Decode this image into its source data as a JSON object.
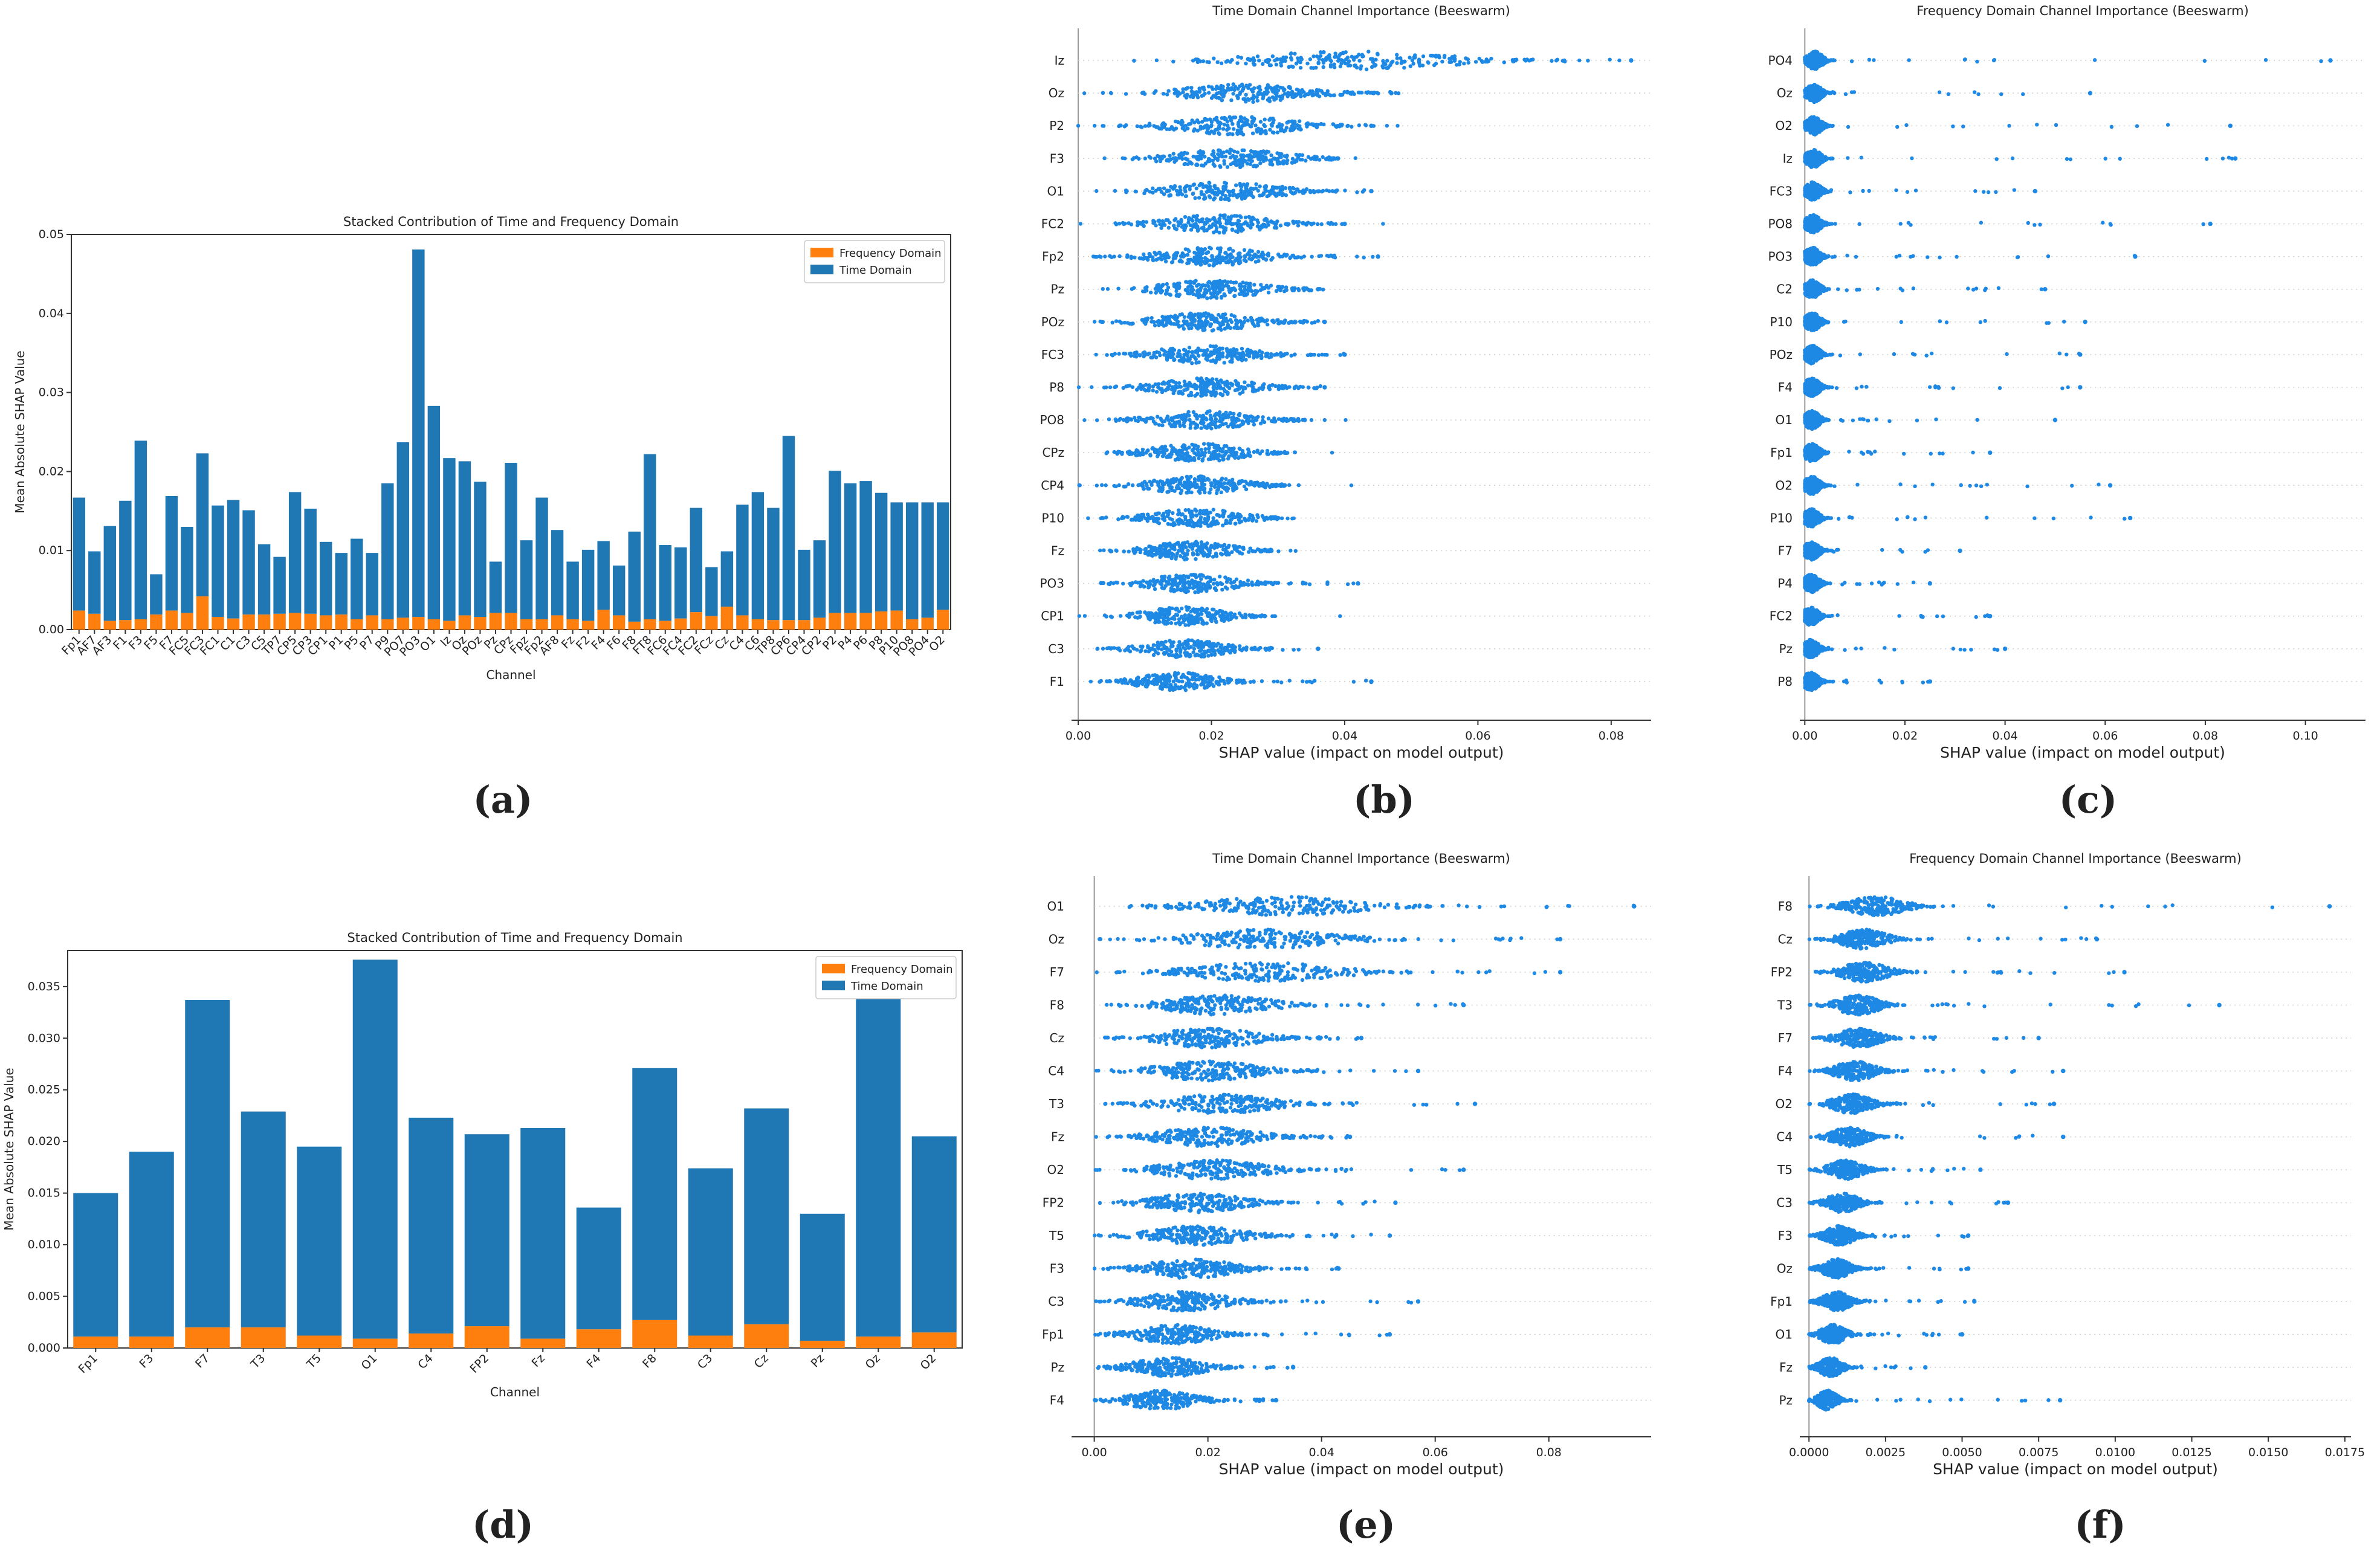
{
  "colors": {
    "time": "#1f77b4",
    "freq": "#ff7f0e",
    "dot": "#1e88e5",
    "axis": "#333333"
  },
  "panel_labels": [
    "(a)",
    "(b)",
    "(c)",
    "(d)",
    "(e)",
    "(f)"
  ],
  "chart_data": [
    {
      "id": "a",
      "type": "bar",
      "stacked": true,
      "title": "Stacked Contribution of Time and Frequency Domain",
      "xlabel": "Channel",
      "ylabel": "Mean Absolute SHAP Value",
      "ylim": [
        0,
        0.05
      ],
      "yticks": [
        "0.00",
        "0.01",
        "0.02",
        "0.03",
        "0.04",
        "0.05"
      ],
      "legend": [
        "Frequency Domain",
        "Time Domain"
      ],
      "legend_position": "top-right",
      "categories": [
        "Fp1",
        "AF7",
        "AF3",
        "F1",
        "F3",
        "F5",
        "F7",
        "FC5",
        "FC3",
        "FC1",
        "C1",
        "C3",
        "C5",
        "TP7",
        "CP5",
        "CP3",
        "CP1",
        "P1",
        "P5",
        "P7",
        "P9",
        "PO7",
        "PO3",
        "O1",
        "Iz",
        "Oz",
        "POz",
        "Pz",
        "CPz",
        "Fpz",
        "Fp2",
        "AF8",
        "Fz",
        "F2",
        "F4",
        "F6",
        "F8",
        "FT8",
        "FC6",
        "FC4",
        "FC2",
        "FCz",
        "Cz",
        "C4",
        "C6",
        "TP8",
        "CP6",
        "CP4",
        "CP2",
        "P2",
        "P4",
        "P6",
        "P8",
        "P10",
        "PO8",
        "PO4",
        "O2"
      ],
      "series": [
        {
          "name": "Frequency Domain",
          "values": [
            0.0024,
            0.002,
            0.0011,
            0.0012,
            0.0013,
            0.0019,
            0.0024,
            0.0021,
            0.0042,
            0.0016,
            0.0014,
            0.0019,
            0.0019,
            0.002,
            0.0021,
            0.002,
            0.0018,
            0.0019,
            0.0013,
            0.0018,
            0.0013,
            0.0015,
            0.0016,
            0.0013,
            0.0011,
            0.0018,
            0.0016,
            0.0021,
            0.0021,
            0.0013,
            0.0013,
            0.0018,
            0.0013,
            0.0011,
            0.0025,
            0.0018,
            0.001,
            0.0013,
            0.0011,
            0.0014,
            0.0022,
            0.0017,
            0.0029,
            0.0018,
            0.0013,
            0.0012,
            0.0012,
            0.0012,
            0.0015,
            0.0021,
            0.0021,
            0.0021,
            0.0023,
            0.0024,
            0.0013,
            0.0015,
            0.0025
          ]
        },
        {
          "name": "Time Domain",
          "total": [
            0.0167,
            0.0099,
            0.0131,
            0.0163,
            0.0239,
            0.007,
            0.0169,
            0.013,
            0.0223,
            0.0157,
            0.0164,
            0.0151,
            0.0108,
            0.0092,
            0.0174,
            0.0153,
            0.0111,
            0.0097,
            0.0115,
            0.0097,
            0.0185,
            0.0237,
            0.0481,
            0.0283,
            0.0217,
            0.0213,
            0.0187,
            0.0086,
            0.0211,
            0.0113,
            0.0167,
            0.0126,
            0.0086,
            0.0101,
            0.0112,
            0.0081,
            0.0124,
            0.0222,
            0.0107,
            0.0104,
            0.0154,
            0.0079,
            0.0099,
            0.0158,
            0.0174,
            0.0154,
            0.0245,
            0.0101,
            0.0113,
            0.0201,
            0.0185,
            0.0188,
            0.0173,
            0.0161,
            0.0161,
            0.0161,
            0.0161
          ]
        }
      ]
    },
    {
      "id": "b",
      "type": "scatter",
      "subtype": "beeswarm",
      "title": "Time Domain Channel Importance (Beeswarm)",
      "xlabel": "SHAP value (impact on model output)",
      "xlim": [
        -0.001,
        0.086
      ],
      "xticks": [
        "0.00",
        "0.02",
        "0.04",
        "0.06",
        "0.08"
      ],
      "channels": [
        "Iz",
        "Oz",
        "P2",
        "F3",
        "O1",
        "FC2",
        "Fp2",
        "Pz",
        "POz",
        "FC3",
        "P8",
        "PO8",
        "CPz",
        "CP4",
        "P10",
        "Fz",
        "PO3",
        "CP1",
        "C3",
        "F1"
      ],
      "bulk_center": [
        0.041,
        0.025,
        0.024,
        0.023,
        0.022,
        0.021,
        0.02,
        0.02,
        0.019,
        0.019,
        0.019,
        0.019,
        0.018,
        0.018,
        0.018,
        0.017,
        0.017,
        0.016,
        0.016,
        0.015
      ],
      "max": [
        0.083,
        0.047,
        0.044,
        0.039,
        0.044,
        0.04,
        0.045,
        0.036,
        0.037,
        0.04,
        0.037,
        0.034,
        0.031,
        0.031,
        0.03,
        0.029,
        0.042,
        0.028,
        0.036,
        0.044
      ]
    },
    {
      "id": "c",
      "type": "scatter",
      "subtype": "beeswarm",
      "title": "Frequency Domain Channel Importance (Beeswarm)",
      "xlabel": "SHAP value (impact on model output)",
      "xlim": [
        -0.001,
        0.112
      ],
      "xticks": [
        "0.00",
        "0.02",
        "0.04",
        "0.06",
        "0.08",
        "0.10"
      ],
      "channels": [
        "PO4",
        "Oz",
        "O2",
        "Iz",
        "FC3",
        "PO8",
        "PO3",
        "C2",
        "P10",
        "POz",
        "F4",
        "O1",
        "Fp1",
        "O2",
        "P10",
        "F7",
        "P4",
        "FC2",
        "Pz",
        "P8"
      ],
      "bulk_center": [
        0.002,
        0.0018,
        0.0018,
        0.0017,
        0.0016,
        0.0016,
        0.0015,
        0.0015,
        0.0015,
        0.0015,
        0.0014,
        0.0014,
        0.0014,
        0.0014,
        0.0013,
        0.0013,
        0.0013,
        0.0012,
        0.0012,
        0.0012
      ],
      "max": [
        0.105,
        0.057,
        0.085,
        0.086,
        0.046,
        0.081,
        0.066,
        0.048,
        0.056,
        0.055,
        0.055,
        0.05,
        0.037,
        0.061,
        0.065,
        0.031,
        0.025,
        0.037,
        0.04,
        0.025
      ]
    },
    {
      "id": "d",
      "type": "bar",
      "stacked": true,
      "title": "Stacked Contribution of Time and Frequency Domain",
      "xlabel": "Channel",
      "ylabel": "Mean Absolute SHAP Value",
      "ylim": [
        0,
        0.0385
      ],
      "yticks": [
        "0.000",
        "0.005",
        "0.010",
        "0.015",
        "0.020",
        "0.025",
        "0.030",
        "0.035"
      ],
      "legend": [
        "Frequency Domain",
        "Time Domain"
      ],
      "legend_position": "top-right",
      "categories": [
        "Fp1",
        "F3",
        "F7",
        "T3",
        "T5",
        "O1",
        "C4",
        "FP2",
        "Fz",
        "F4",
        "F8",
        "C3",
        "Cz",
        "Pz",
        "Oz",
        "O2"
      ],
      "series": [
        {
          "name": "Frequency Domain",
          "values": [
            0.0011,
            0.0011,
            0.002,
            0.002,
            0.0012,
            0.0009,
            0.0014,
            0.0021,
            0.0009,
            0.0018,
            0.0027,
            0.0012,
            0.0023,
            0.0007,
            0.0011,
            0.0015
          ]
        },
        {
          "name": "Time Domain",
          "total": [
            0.015,
            0.019,
            0.0337,
            0.0229,
            0.0195,
            0.0376,
            0.0223,
            0.0207,
            0.0213,
            0.0136,
            0.0271,
            0.0174,
            0.0232,
            0.013,
            0.0352,
            0.0205
          ]
        }
      ]
    },
    {
      "id": "e",
      "type": "scatter",
      "subtype": "beeswarm",
      "title": "Time Domain Channel Importance (Beeswarm)",
      "xlabel": "SHAP value (impact on model output)",
      "xlim": [
        -0.004,
        0.098
      ],
      "xticks": [
        "0.00",
        "0.02",
        "0.04",
        "0.06",
        "0.08"
      ],
      "channels": [
        "O1",
        "Oz",
        "F7",
        "F8",
        "Cz",
        "C4",
        "T3",
        "Fz",
        "O2",
        "FP2",
        "T5",
        "F3",
        "C3",
        "Fp1",
        "Pz",
        "F4"
      ],
      "bulk_center": [
        0.033,
        0.03,
        0.03,
        0.022,
        0.02,
        0.02,
        0.022,
        0.02,
        0.021,
        0.018,
        0.018,
        0.017,
        0.016,
        0.014,
        0.013,
        0.012
      ],
      "max": [
        0.095,
        0.082,
        0.082,
        0.065,
        0.047,
        0.057,
        0.067,
        0.045,
        0.065,
        0.053,
        0.052,
        0.043,
        0.057,
        0.052,
        0.035,
        0.032
      ]
    },
    {
      "id": "f",
      "type": "scatter",
      "subtype": "beeswarm",
      "title": "Frequency Domain Channel Importance (Beeswarm)",
      "xlabel": "SHAP value (impact on model output)",
      "xlim": [
        -0.0003,
        0.0177
      ],
      "xticks": [
        "0.0000",
        "0.0025",
        "0.0050",
        "0.0075",
        "0.0100",
        "0.0125",
        "0.0150",
        "0.0175"
      ],
      "channels": [
        "F8",
        "Cz",
        "FP2",
        "T3",
        "F7",
        "F4",
        "O2",
        "C4",
        "T5",
        "C3",
        "F3",
        "Oz",
        "Fp1",
        "O1",
        "Fz",
        "Pz"
      ],
      "bulk_center": [
        0.0022,
        0.0018,
        0.0018,
        0.0016,
        0.0016,
        0.0015,
        0.0014,
        0.0013,
        0.0012,
        0.0011,
        0.001,
        0.0009,
        0.0009,
        0.0008,
        0.0007,
        0.0006
      ],
      "max": [
        0.017,
        0.0094,
        0.0103,
        0.0134,
        0.0075,
        0.0083,
        0.008,
        0.0083,
        0.0056,
        0.0065,
        0.0052,
        0.0052,
        0.0054,
        0.005,
        0.0038,
        0.0082
      ]
    }
  ]
}
